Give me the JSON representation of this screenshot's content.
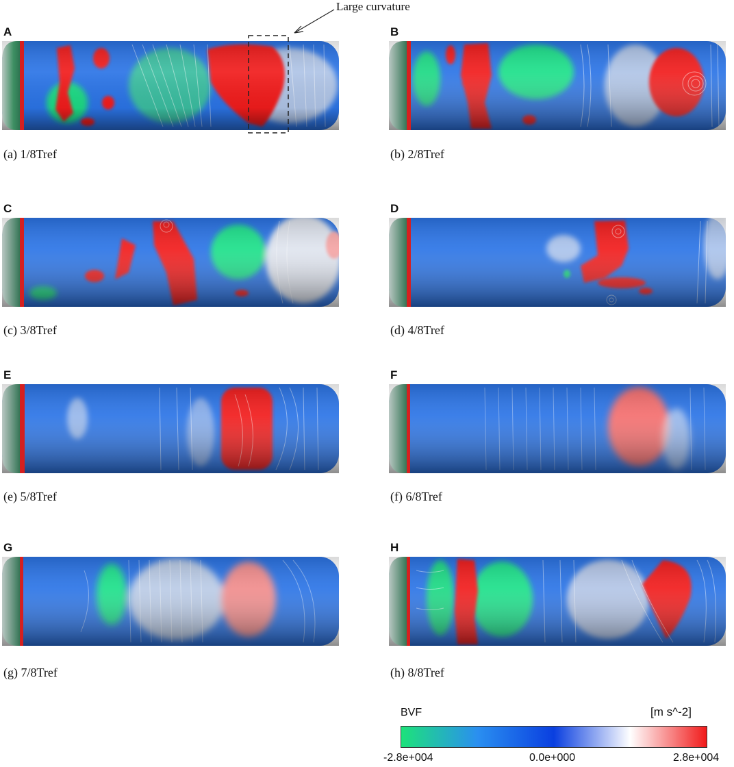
{
  "annotation": {
    "label": "Large curvature"
  },
  "panels": [
    {
      "letter": "A",
      "caption": "(a) 1/8Tref"
    },
    {
      "letter": "B",
      "caption": "(b) 2/8Tref"
    },
    {
      "letter": "C",
      "caption": "(c) 3/8Tref"
    },
    {
      "letter": "D",
      "caption": "(d) 4/8Tref"
    },
    {
      "letter": "E",
      "caption": "(e) 5/8Tref"
    },
    {
      "letter": "F",
      "caption": "(f) 6/8Tref"
    },
    {
      "letter": "G",
      "caption": "(g) 7/8Tref"
    },
    {
      "letter": "H",
      "caption": "(h) 8/8Tref"
    }
  ],
  "legend": {
    "variable": "BVF",
    "unit": "[m s^-2]",
    "min_label": "-2.8e+004",
    "mid_label": "0.0e+000",
    "max_label": "2.8e+004",
    "colors": [
      "#1de27a",
      "#2a8ff0",
      "#0a3fe0",
      "#ffffff",
      "#f11a1a"
    ]
  }
}
